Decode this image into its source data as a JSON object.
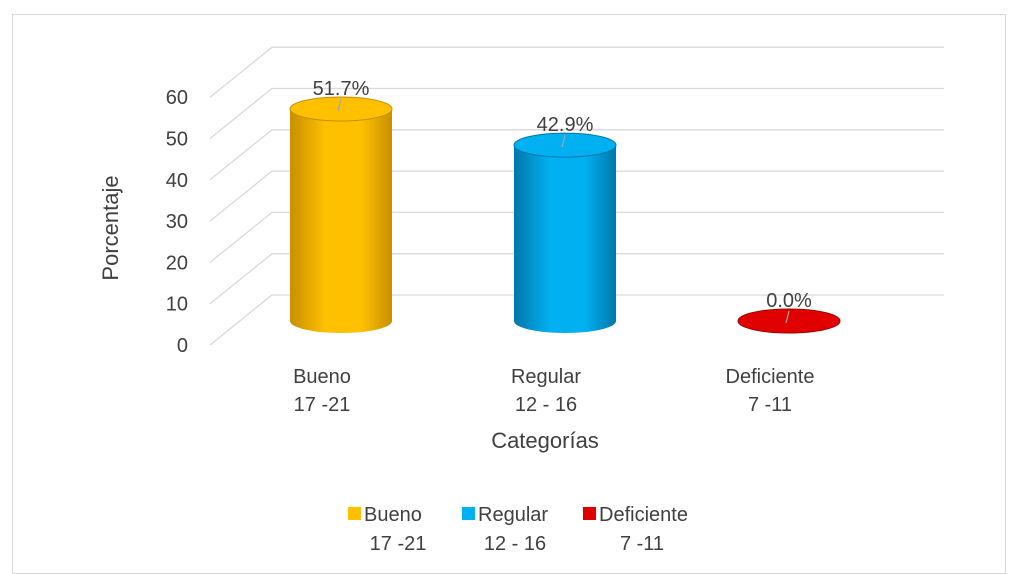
{
  "chart_data": {
    "type": "bar",
    "style": "3d-cylinder",
    "categories": [
      {
        "line1": "Bueno",
        "line2": "17 -21"
      },
      {
        "line1": "Regular",
        "line2": "12 - 16"
      },
      {
        "line1": "Deficiente",
        "line2": "7 -11"
      }
    ],
    "values": [
      51.7,
      42.9,
      0.0
    ],
    "data_labels": [
      "51.7%",
      "42.9%",
      "0.0%"
    ],
    "colors": [
      "#ffc000",
      "#00b0f0",
      "#e00000"
    ],
    "side_colors": [
      "#c78f00",
      "#0077aa",
      "#a00000"
    ],
    "ylim": [
      0,
      60
    ],
    "yticks": [
      "0",
      "10",
      "20",
      "30",
      "40",
      "50",
      "60"
    ],
    "ylabel": "Porcentaje",
    "xlabel": "Categorías",
    "grid": true,
    "legend_position": "bottom",
    "legend": [
      {
        "line1": "Bueno",
        "line2": "17 -21"
      },
      {
        "line1": "Regular",
        "line2": "12 - 16"
      },
      {
        "line1": "Deficiente",
        "line2": "7 -11"
      }
    ]
  }
}
